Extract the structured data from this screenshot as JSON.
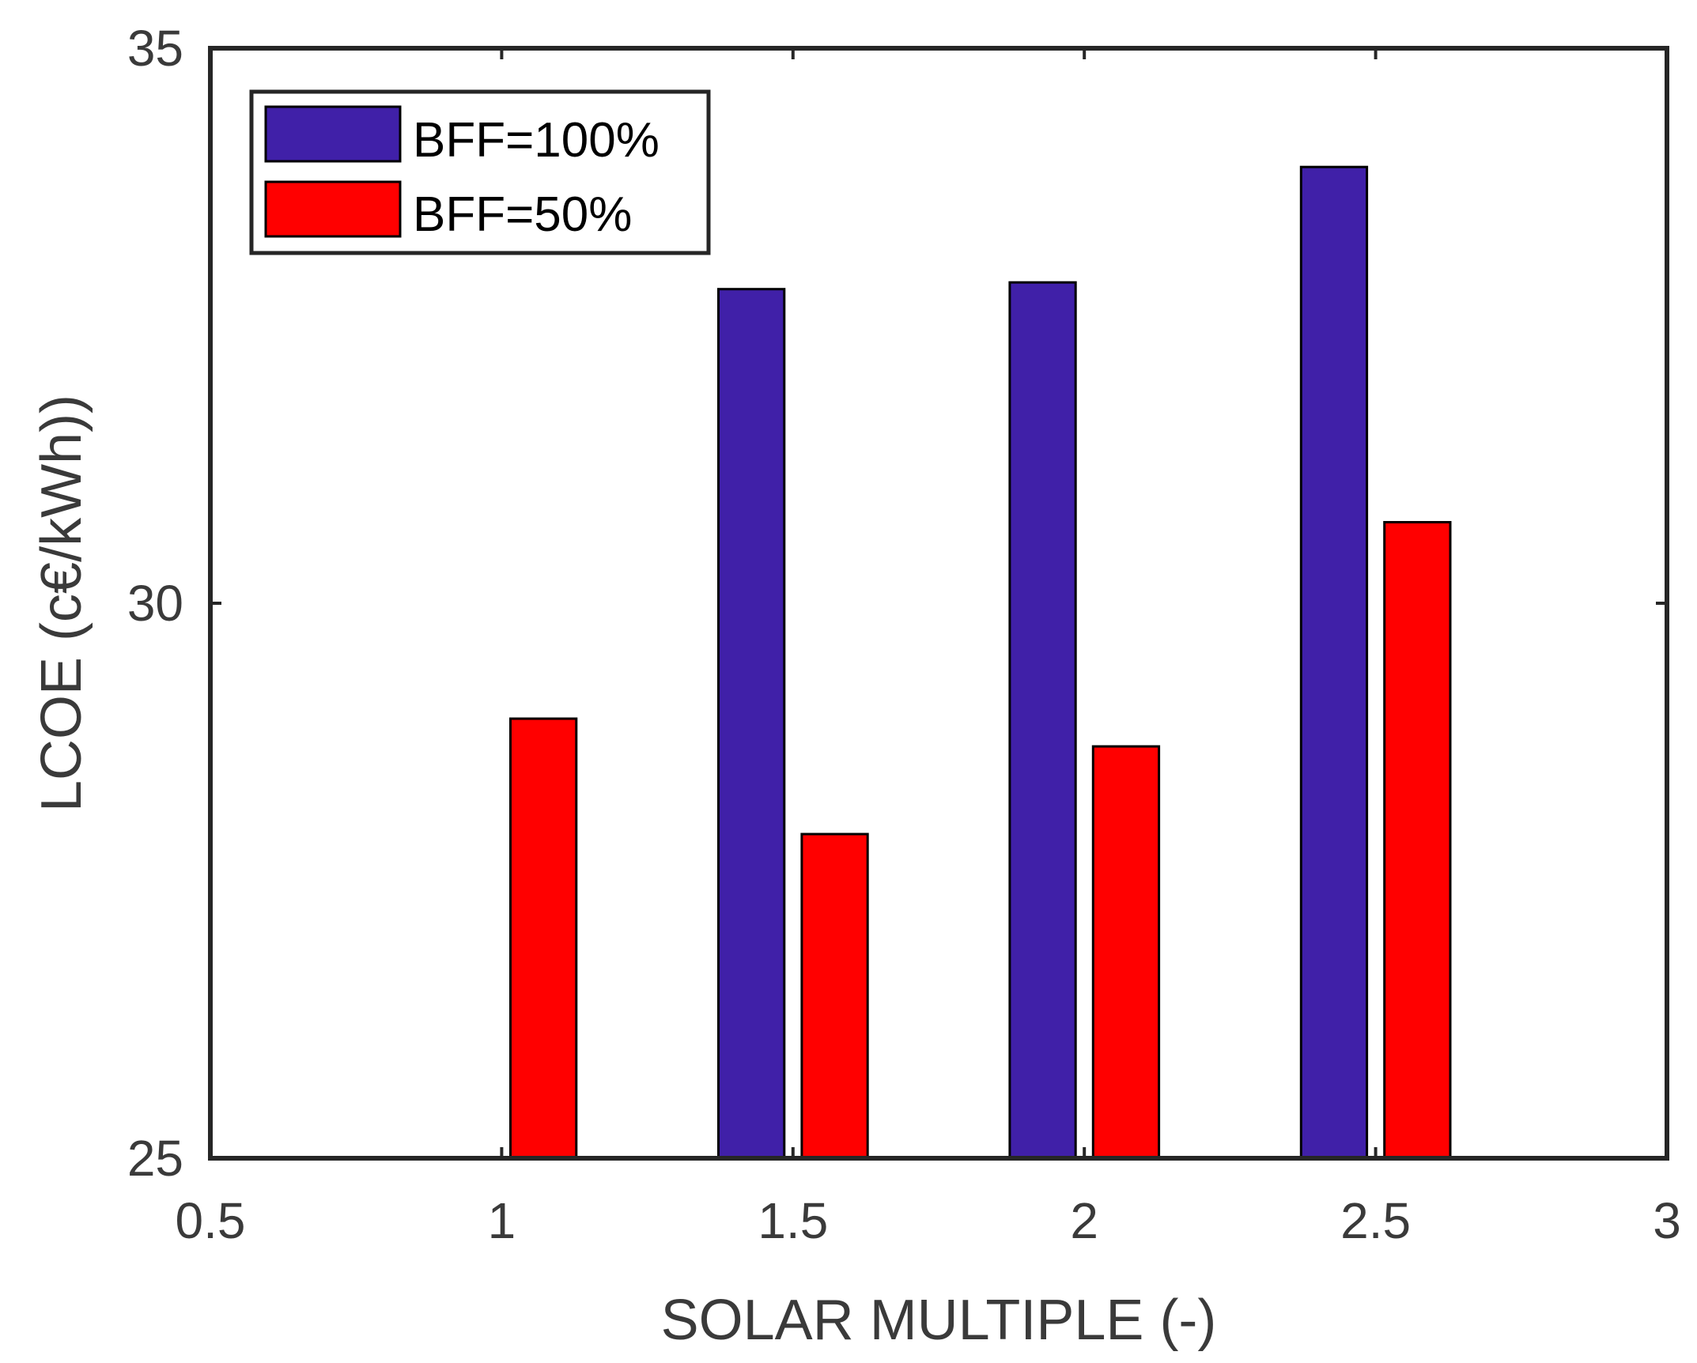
{
  "chart_data": {
    "type": "bar",
    "xlabel": "SOLAR MULTIPLE (-)",
    "ylabel": "LCOE (c€/kWh))",
    "xlim": [
      0.5,
      3
    ],
    "ylim": [
      25,
      35
    ],
    "xticks": [
      0.5,
      1,
      1.5,
      2,
      2.5,
      3
    ],
    "xtick_labels": [
      "0.5",
      "1",
      "1.5",
      "2",
      "2.5",
      "3"
    ],
    "yticks": [
      25,
      30,
      35
    ],
    "ytick_labels": [
      "25",
      "30",
      "35"
    ],
    "categories": [
      1,
      1.5,
      2,
      2.5
    ],
    "series": [
      {
        "name": "BFF=100%",
        "color": "#4020A8",
        "values": [
          null,
          32.83,
          32.89,
          33.93
        ]
      },
      {
        "name": "BFF=50%",
        "color": "#FF0000",
        "values": [
          28.96,
          27.92,
          28.71,
          30.73
        ]
      }
    ],
    "legend_location": "top-left",
    "grid": false
  }
}
